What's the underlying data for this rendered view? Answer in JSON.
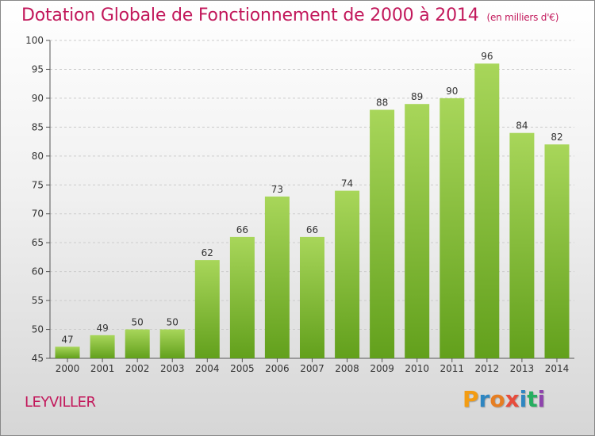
{
  "header": {
    "title": "Dotation Globale de Fonctionnement de 2000 à 2014",
    "subtitle": "(en milliers d'€)"
  },
  "footer": {
    "place": "LEYVILLER",
    "logo_text": "Proxiti",
    "logo_colors": [
      "#f39c12",
      "#2e86c1",
      "#e67e22",
      "#e74c3c",
      "#2e86c1",
      "#27ae60",
      "#8e44ad"
    ]
  },
  "colors": {
    "title": "#c2185b",
    "bar_light": "#a8d65a",
    "bar_dark": "#62a01c",
    "grid": "#cccccc",
    "axis": "#555555"
  },
  "chart_data": {
    "type": "bar",
    "title": "Dotation Globale de Fonctionnement de 2000 à 2014",
    "subtitle": "(en milliers d'€)",
    "xlabel": "",
    "ylabel": "",
    "categories": [
      "2000",
      "2001",
      "2002",
      "2003",
      "2004",
      "2005",
      "2006",
      "2007",
      "2008",
      "2009",
      "2010",
      "2011",
      "2012",
      "2013",
      "2014"
    ],
    "values": [
      47,
      49,
      50,
      50,
      62,
      66,
      73,
      66,
      74,
      88,
      89,
      90,
      96,
      84,
      82
    ],
    "ylim": [
      45,
      100
    ],
    "yticks": [
      45,
      50,
      55,
      60,
      65,
      70,
      75,
      80,
      85,
      90,
      95,
      100
    ],
    "grid": true,
    "legend": "none"
  }
}
